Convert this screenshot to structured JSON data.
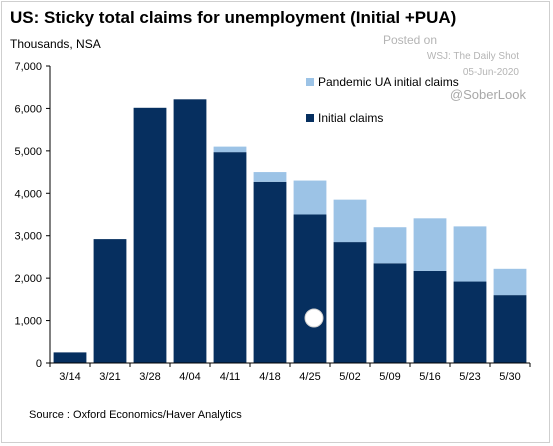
{
  "header": {
    "title": "US: Sticky total claims for unemployment (Initial +PUA)",
    "unit": "Thousands, NSA"
  },
  "watermark": {
    "posted": "Posted on",
    "source": "WSJ: The Daily Shot",
    "date": "05-Jun-2020",
    "handle": "@SoberLook"
  },
  "footer": {
    "source": "Source : Oxford Economics/Haver Analytics"
  },
  "colors": {
    "initial": "#062f5f",
    "pua": "#9cc3e6"
  },
  "chart_data": {
    "type": "bar",
    "stacked": true,
    "categories": [
      "3/14",
      "3/21",
      "3/28",
      "4/04",
      "4/11",
      "4/18",
      "4/25",
      "5/02",
      "5/09",
      "5/16",
      "5/23",
      "5/30"
    ],
    "series": [
      {
        "name": "Initial claims",
        "values": [
          250,
          2920,
          6015,
          6215,
          4970,
          4270,
          3500,
          2850,
          2350,
          2170,
          1920,
          1600
        ]
      },
      {
        "name": "Pandemic UA initial claims",
        "values": [
          0,
          0,
          0,
          0,
          130,
          230,
          800,
          1000,
          850,
          1240,
          1300,
          620
        ]
      }
    ],
    "yticks": [
      "0",
      "1,000",
      "2,000",
      "3,000",
      "4,000",
      "5,000",
      "6,000",
      "7,000"
    ],
    "ylim": [
      0,
      7000
    ],
    "grid": false,
    "legend": "top-right"
  }
}
